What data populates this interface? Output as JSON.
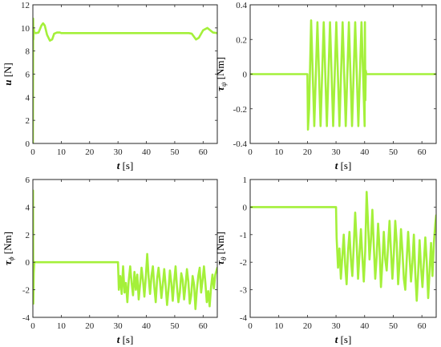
{
  "chart_data": [
    {
      "type": "line",
      "xlabel_var": "t",
      "xlabel_unit": "[s]",
      "ylabel_var": "u",
      "ylabel_sub": "",
      "ylabel_unit": "[N]",
      "xlim": [
        0,
        65
      ],
      "ylim": [
        0,
        12
      ],
      "xticks": [
        0,
        10,
        20,
        30,
        40,
        50,
        60
      ],
      "yticks": [
        0,
        2,
        4,
        6,
        8,
        10,
        12
      ],
      "color": "#a4f03a",
      "series": [
        {
          "x": [
            0,
            0.1,
            0.2,
            0.3,
            0.5,
            1,
            2,
            3,
            3.6,
            4.2,
            5,
            6,
            6.8,
            7.5,
            8.5,
            9.5,
            10,
            12,
            20,
            30,
            40,
            50,
            55,
            56,
            57.5,
            58.5,
            60,
            61.5,
            62.5,
            63.5,
            65
          ],
          "y": [
            0,
            10.8,
            9.0,
            9.9,
            9.6,
            9.55,
            9.6,
            10.2,
            10.4,
            10.2,
            9.4,
            8.9,
            9.0,
            9.5,
            9.6,
            9.6,
            9.55,
            9.55,
            9.55,
            9.55,
            9.55,
            9.55,
            9.55,
            9.5,
            9.0,
            9.15,
            9.8,
            10.0,
            9.8,
            9.6,
            9.55
          ]
        }
      ]
    },
    {
      "type": "line",
      "xlabel_var": "t",
      "xlabel_unit": "[s]",
      "ylabel_var": "τ",
      "ylabel_sub": "ψ",
      "ylabel_unit": "[Nm]",
      "xlim": [
        0,
        65
      ],
      "ylim": [
        -0.4,
        0.4
      ],
      "xticks": [
        0,
        10,
        20,
        30,
        40,
        50,
        60
      ],
      "yticks": [
        -0.4,
        -0.2,
        0,
        0.2,
        0.4
      ],
      "color": "#a4f03a",
      "series": [
        {
          "x": [
            0,
            20,
            20.2,
            20.6,
            21.3,
            22.4,
            23.5,
            24.6,
            25.7,
            26.8,
            27.9,
            29.0,
            30.1,
            31.2,
            32.3,
            33.4,
            34.5,
            35.6,
            36.7,
            37.8,
            38.9,
            40.0,
            40.1,
            40.25,
            40.4,
            40.6,
            65
          ],
          "y": [
            0,
            0,
            -0.32,
            -0.2,
            0.31,
            -0.3,
            0.3,
            -0.3,
            0.3,
            -0.3,
            0.3,
            -0.3,
            0.3,
            -0.3,
            0.3,
            -0.3,
            0.3,
            -0.3,
            0.3,
            -0.3,
            0.3,
            -0.3,
            0.3,
            -0.15,
            0.02,
            0,
            0
          ]
        }
      ]
    },
    {
      "type": "line",
      "xlabel_var": "t",
      "xlabel_unit": "[s]",
      "ylabel_var": "τ",
      "ylabel_sub": "ϕ",
      "ylabel_unit": "[Nm]",
      "xlim": [
        0,
        65
      ],
      "ylim": [
        -4,
        6
      ],
      "xticks": [
        0,
        10,
        20,
        30,
        40,
        50,
        60
      ],
      "yticks": [
        -4,
        -2,
        0,
        2,
        4,
        6
      ],
      "color": "#a4f03a",
      "series": [
        {
          "x": [
            0,
            0.05,
            0.15,
            0.3,
            0.5,
            30,
            30.3,
            30.8,
            31.3,
            31.8,
            32.3,
            32.8,
            33.3,
            33.8,
            34.3,
            34.8,
            35.3,
            35.8,
            36.3,
            36.8,
            37.3,
            37.8,
            38.3,
            38.8,
            39.3,
            39.8,
            40.3,
            40.8,
            41.3,
            41.8,
            42.3,
            42.8,
            43.3,
            43.8,
            44.3,
            44.8,
            45.3,
            45.8,
            46.3,
            46.8,
            47.3,
            47.8,
            48.3,
            48.8,
            49.3,
            49.8,
            50.3,
            50.8,
            51.3,
            51.8,
            52.3,
            52.8,
            53.3,
            53.8,
            54.3,
            54.8,
            55.3,
            55.8,
            56.3,
            56.8,
            57.3,
            57.8,
            58.3,
            58.8,
            59.3,
            59.8,
            60.3,
            60.8,
            61.3,
            61.8,
            62.3,
            62.8,
            63.3,
            63.8,
            64.3,
            65
          ],
          "y": [
            0,
            5.2,
            -3.0,
            -0.8,
            0,
            0,
            -2.0,
            -1.0,
            -2.3,
            -0.3,
            -2.2,
            -1.5,
            -2.9,
            -1.3,
            -0.3,
            -1.5,
            -2.4,
            -0.7,
            -2.0,
            -0.9,
            -2.7,
            -1.6,
            -0.4,
            -1.3,
            -2.5,
            -1.1,
            0.6,
            -1.1,
            -2.3,
            -1.0,
            -0.3,
            -1.8,
            -2.9,
            -1.2,
            -0.4,
            -1.4,
            -2.6,
            -1.6,
            -0.5,
            -1.7,
            -3.1,
            -2.0,
            -0.6,
            -1.5,
            -2.8,
            -1.4,
            -0.3,
            -1.8,
            -2.9,
            -2.2,
            -0.8,
            -1.3,
            -2.7,
            -1.7,
            -0.5,
            -1.4,
            -3.0,
            -2.4,
            -1.0,
            -1.6,
            -3.4,
            -2.0,
            -1.0,
            -0.4,
            -2.2,
            -1.3,
            -0.3,
            -1.5,
            -2.9,
            -2.1,
            -3.2,
            -1.8,
            -0.9,
            -1.9,
            -0.9,
            -0.4
          ]
        }
      ]
    },
    {
      "type": "line",
      "xlabel_var": "t",
      "xlabel_unit": "[s]",
      "ylabel_var": "τ",
      "ylabel_sub": "θ",
      "ylabel_unit": "[Nm]",
      "xlim": [
        0,
        65
      ],
      "ylim": [
        -4,
        1
      ],
      "xticks": [
        0,
        10,
        20,
        30,
        40,
        50,
        60
      ],
      "yticks": [
        -4,
        -3,
        -2,
        -1,
        0,
        1
      ],
      "color": "#a4f03a",
      "series": [
        {
          "x": [
            0,
            30,
            30.2,
            30.7,
            31.2,
            31.7,
            32.2,
            32.7,
            33.2,
            33.7,
            34.2,
            34.7,
            35.2,
            35.7,
            36.2,
            36.7,
            37.2,
            37.7,
            38.2,
            38.7,
            39.2,
            39.7,
            40.2,
            40.7,
            41.2,
            41.7,
            42.2,
            42.7,
            43.2,
            43.7,
            44.2,
            44.7,
            45.2,
            45.7,
            46.2,
            46.7,
            47.2,
            47.7,
            48.2,
            48.7,
            49.2,
            49.7,
            50.2,
            50.7,
            51.2,
            51.7,
            52.2,
            52.7,
            53.2,
            53.7,
            54.2,
            54.7,
            55.2,
            55.7,
            56.2,
            56.7,
            57.2,
            57.7,
            58.2,
            58.7,
            59.2,
            59.7,
            60.2,
            60.7,
            61.2,
            61.7,
            62.2,
            62.7,
            63.2,
            63.7,
            64.2,
            64.7,
            65
          ],
          "y": [
            0,
            0,
            -1.1,
            -2.2,
            -1.5,
            -2.6,
            -1.8,
            -1.0,
            -2.1,
            -2.8,
            -1.6,
            -0.9,
            -1.9,
            -2.5,
            -1.4,
            -0.2,
            -1.3,
            -2.6,
            -1.7,
            -0.8,
            -1.8,
            -2.7,
            -1.6,
            0.55,
            -0.6,
            -1.9,
            -1.2,
            -0.1,
            -1.4,
            -2.6,
            -1.8,
            -0.6,
            -1.5,
            -2.9,
            -2.0,
            -0.9,
            -1.9,
            -2.3,
            -1.4,
            -0.5,
            -1.6,
            -2.6,
            -1.7,
            -0.5,
            -1.3,
            -2.8,
            -2.0,
            -0.8,
            -1.6,
            -2.6,
            -3.0,
            -1.9,
            -0.9,
            -1.8,
            -2.7,
            -2.0,
            -1.0,
            -2.4,
            -3.4,
            -2.4,
            -1.2,
            -2.2,
            -2.9,
            -2.0,
            -1.1,
            -2.0,
            -3.3,
            -2.3,
            -1.3,
            -2.5,
            -1.3,
            -0.6,
            -0.3
          ]
        }
      ]
    }
  ]
}
